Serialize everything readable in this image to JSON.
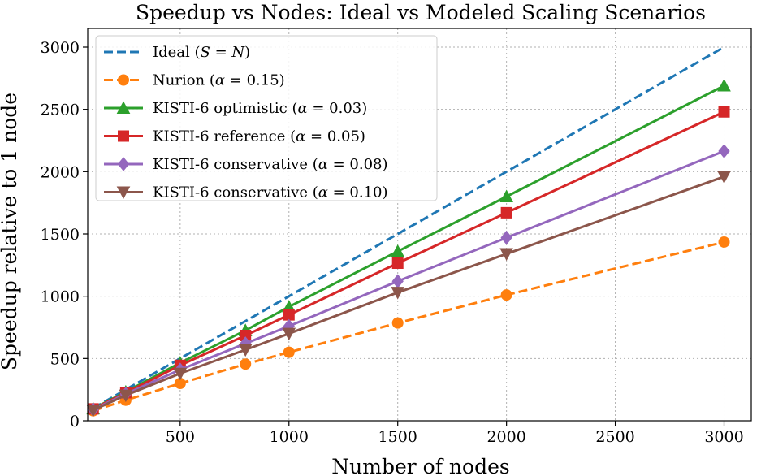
{
  "chart_data": {
    "type": "line",
    "title": "Speedup vs Nodes: Ideal vs Modeled Scaling Scenarios",
    "xlabel": "Number of nodes",
    "ylabel": "Speedup relative to 1 node",
    "xlim": [
      75,
      3125
    ],
    "ylim": [
      0,
      3150
    ],
    "xticks": [
      500,
      1000,
      1500,
      2000,
      2500,
      3000
    ],
    "yticks": [
      0,
      500,
      1000,
      1500,
      2000,
      2500,
      3000
    ],
    "grid": true,
    "legend": "top-left",
    "series": [
      {
        "name": "Ideal (S = N)",
        "label_parts": [
          "Ideal (",
          "S",
          " = ",
          "N",
          ")"
        ],
        "color": "#1f77b4",
        "linestyle": "dashed",
        "marker": "none",
        "x": [
          100,
          3000
        ],
        "y": [
          100,
          3000
        ]
      },
      {
        "name": "Nurion (α = 0.15)",
        "label_parts": [
          "Nurion (",
          "α",
          " = 0.15)"
        ],
        "color": "#ff7f0e",
        "linestyle": "dashed",
        "marker": "circle",
        "x": [
          100,
          250,
          500,
          800,
          1000,
          1500,
          2000,
          3000
        ],
        "y": [
          80,
          165,
          300,
          455,
          550,
          785,
          1010,
          1435
        ]
      },
      {
        "name": "KISTI-6 optimistic (α = 0.03)",
        "label_parts": [
          "KISTI-6 optimistic (",
          "α",
          " = 0.03)"
        ],
        "color": "#2ca02c",
        "linestyle": "solid",
        "marker": "triangle-up",
        "x": [
          100,
          250,
          500,
          800,
          1000,
          1500,
          2000,
          3000
        ],
        "y": [
          97,
          232,
          465,
          725,
          915,
          1360,
          1800,
          2690
        ]
      },
      {
        "name": "KISTI-6 reference (α = 0.05)",
        "label_parts": [
          "KISTI-6 reference (",
          "α",
          " = 0.05)"
        ],
        "color": "#d62728",
        "linestyle": "solid",
        "marker": "square",
        "x": [
          100,
          250,
          500,
          800,
          1000,
          1500,
          2000,
          3000
        ],
        "y": [
          95,
          225,
          445,
          685,
          850,
          1265,
          1670,
          2480
        ]
      },
      {
        "name": "KISTI-6 conservative (α = 0.08)",
        "label_parts": [
          "KISTI-6 conservative (",
          "α",
          " = 0.08)"
        ],
        "color": "#9467bd",
        "linestyle": "solid",
        "marker": "diamond",
        "x": [
          100,
          250,
          500,
          800,
          1000,
          1500,
          2000,
          3000
        ],
        "y": [
          90,
          215,
          410,
          620,
          760,
          1120,
          1470,
          2165
        ]
      },
      {
        "name": "KISTI-6 conservative (α = 0.10)",
        "label_parts": [
          "KISTI-6 conservative (",
          "α",
          " = 0.10)"
        ],
        "color": "#8c564b",
        "linestyle": "solid",
        "marker": "triangle-down",
        "x": [
          100,
          250,
          500,
          800,
          1000,
          1500,
          2000,
          3000
        ],
        "y": [
          85,
          205,
          380,
          570,
          700,
          1030,
          1340,
          1960
        ]
      }
    ]
  }
}
